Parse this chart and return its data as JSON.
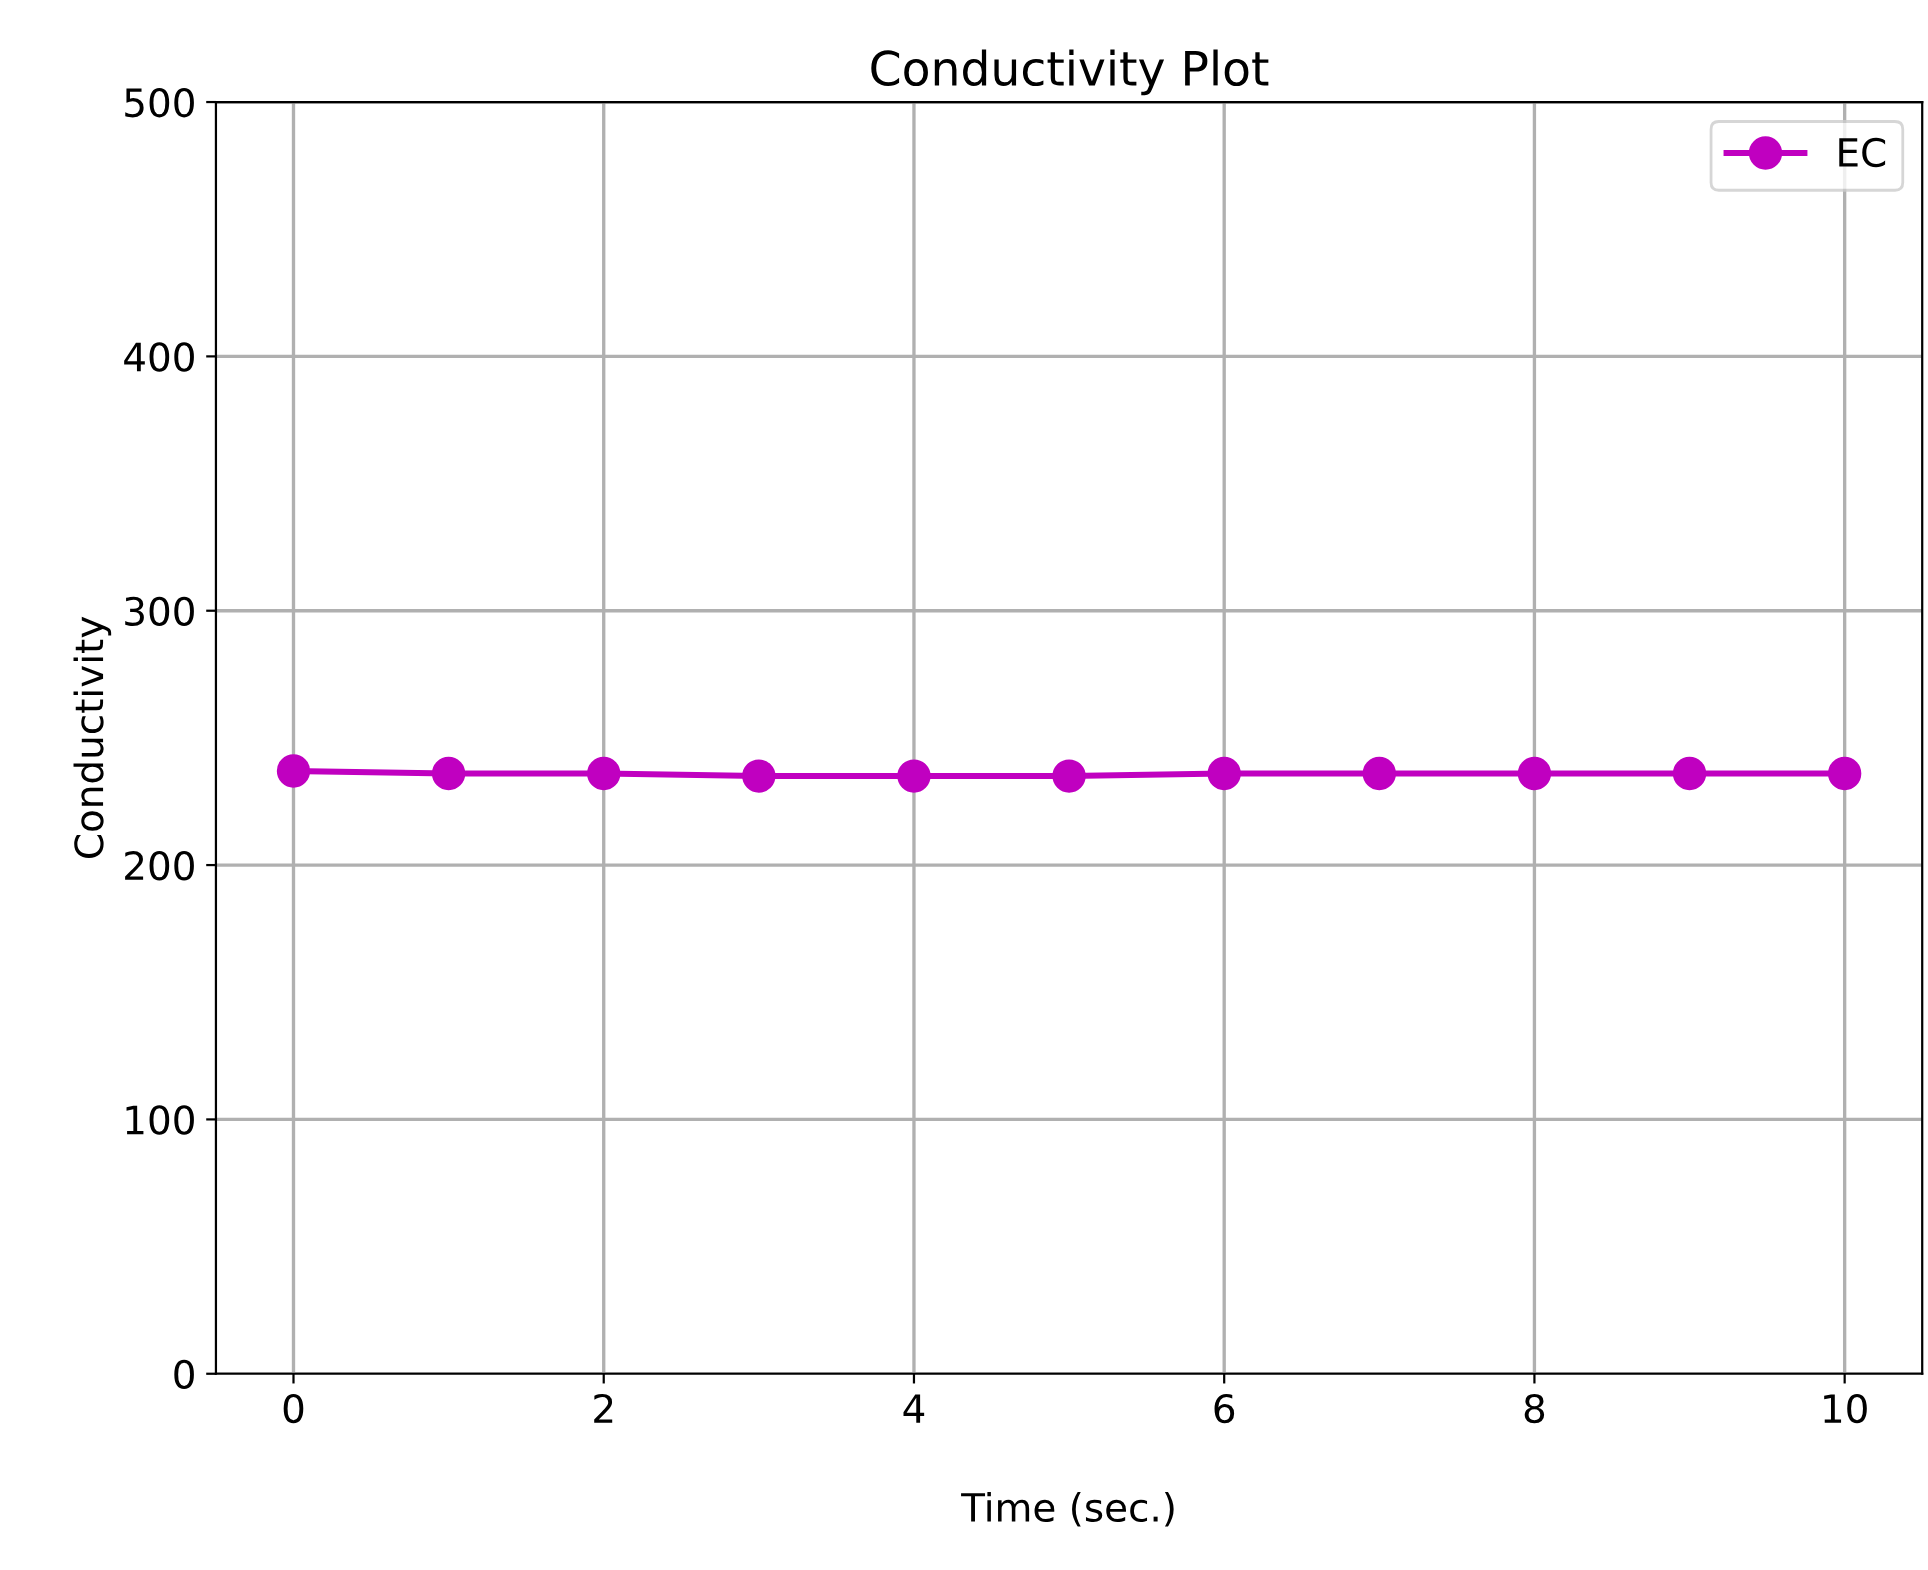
{
  "chart_data": {
    "type": "line",
    "title": "Conductivity Plot",
    "xlabel": "Time (sec.)",
    "ylabel": "Conductivity",
    "x": [
      0,
      1,
      2,
      3,
      4,
      5,
      6,
      7,
      8,
      9,
      10
    ],
    "series": [
      {
        "name": "EC",
        "color": "#c000c0",
        "values": [
          237,
          236,
          236,
          235,
          235,
          235,
          236,
          236,
          236,
          236,
          236
        ]
      }
    ],
    "xlim": [
      -0.5,
      10.5
    ],
    "ylim": [
      0,
      500
    ],
    "xticks": [
      0,
      2,
      4,
      6,
      8,
      10
    ],
    "yticks": [
      0,
      100,
      200,
      300,
      400,
      500
    ],
    "grid": true,
    "legend": "top right",
    "marker": "circle",
    "line_style": "solid"
  }
}
